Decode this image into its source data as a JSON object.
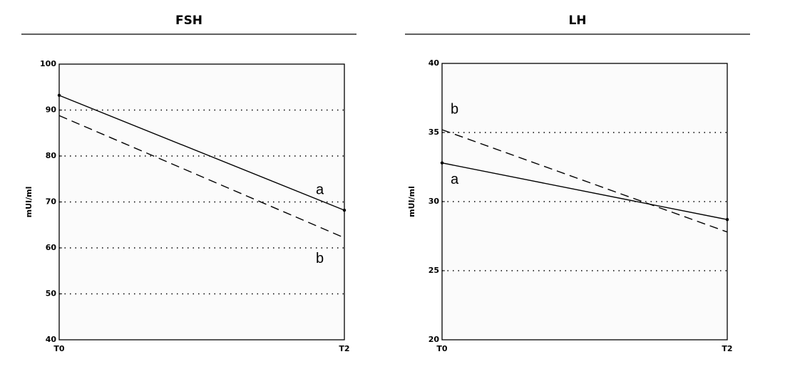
{
  "chart_data": [
    {
      "type": "line",
      "title": "FSH",
      "y_label": "mUI/ml",
      "categories": [
        "T0",
        "T2"
      ],
      "series": [
        {
          "name": "a",
          "color": "#000000",
          "style": "solid",
          "values": [
            93.2,
            68.2
          ]
        },
        {
          "name": "b",
          "color": "#000000",
          "style": "dashed",
          "values": [
            88.8,
            62.2
          ]
        }
      ],
      "ylim": [
        40,
        100
      ],
      "yticks": [
        40,
        50,
        60,
        70,
        80,
        90,
        100
      ],
      "grid": true
    },
    {
      "type": "line",
      "title": "LH",
      "y_label": "mUI/ml",
      "categories": [
        "T0",
        "T2"
      ],
      "series": [
        {
          "name": "a",
          "color": "#000000",
          "style": "solid",
          "values": [
            32.8,
            28.7
          ]
        },
        {
          "name": "b",
          "color": "#000000",
          "style": "dashed",
          "values": [
            35.2,
            27.8
          ]
        }
      ],
      "ylim": [
        20,
        40
      ],
      "yticks": [
        20,
        25,
        30,
        35,
        40
      ],
      "grid": true
    }
  ]
}
